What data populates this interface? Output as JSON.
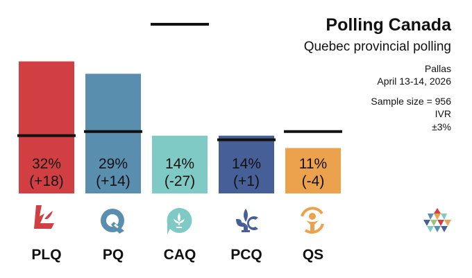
{
  "header": {
    "title": "Polling Canada",
    "subtitle": "Quebec provincial polling"
  },
  "poll_info": {
    "pollster": "Pallas",
    "dates": "April 13-14, 2026",
    "sample_size": "Sample size = 956",
    "method": "IVR",
    "margin": "±3%"
  },
  "chart_data": {
    "type": "bar",
    "title": "Quebec provincial polling",
    "categories": [
      "PLQ",
      "PQ",
      "CAQ",
      "PCQ",
      "QS"
    ],
    "values": [
      32,
      29,
      14,
      14,
      11
    ],
    "value_labels": [
      "32%",
      "29%",
      "14%",
      "14%",
      "11%"
    ],
    "change_labels": [
      "(+18)",
      "(+14)",
      "(-27)",
      "(+1)",
      "(-4)"
    ],
    "previous_values": [
      14,
      15,
      41,
      13,
      15
    ],
    "colors": [
      "#d13f43",
      "#5a8eae",
      "#7fcac4",
      "#465f96",
      "#eca14d"
    ],
    "ylim": [
      0,
      41
    ],
    "grid": false,
    "legend": "none"
  },
  "party_icons": [
    "plq-logo-icon",
    "pq-logo-icon",
    "caq-logo-icon",
    "pcq-logo-icon",
    "qs-logo-icon"
  ],
  "brand_icon": "polling-canada-logo-icon"
}
